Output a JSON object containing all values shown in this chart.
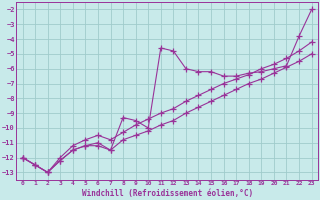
{
  "xlabel": "Windchill (Refroidissement éolien,°C)",
  "x": [
    0,
    1,
    2,
    3,
    4,
    5,
    6,
    7,
    8,
    9,
    10,
    11,
    12,
    13,
    14,
    15,
    16,
    17,
    18,
    19,
    20,
    21,
    22,
    23
  ],
  "line1": [
    -12.0,
    -12.5,
    -13.0,
    -12.2,
    -11.5,
    -11.2,
    -11.0,
    -11.5,
    -9.3,
    -9.5,
    -10.0,
    -4.6,
    -4.8,
    -6.0,
    -6.2,
    -6.2,
    -6.5,
    -6.5,
    -6.3,
    -6.2,
    -6.0,
    -5.8,
    -3.8,
    -2.0
  ],
  "line2": [
    -12.0,
    -12.5,
    -13.0,
    -12.2,
    -11.5,
    -11.2,
    -11.2,
    -11.5,
    -10.8,
    -10.5,
    -10.2,
    -9.8,
    -9.5,
    -9.0,
    -8.6,
    -8.2,
    -7.8,
    -7.4,
    -7.0,
    -6.7,
    -6.3,
    -5.9,
    -5.5,
    -5.0
  ],
  "line3": [
    -12.0,
    -12.5,
    -13.0,
    -12.0,
    -11.2,
    -10.8,
    -10.5,
    -10.8,
    -10.3,
    -9.8,
    -9.4,
    -9.0,
    -8.7,
    -8.2,
    -7.8,
    -7.4,
    -7.0,
    -6.7,
    -6.4,
    -6.0,
    -5.7,
    -5.3,
    -4.8,
    -4.2
  ],
  "color": "#993399",
  "bg_color": "#c8eaea",
  "grid_color": "#a0cccc",
  "ylim": [
    -13.5,
    -1.5
  ],
  "xlim": [
    -0.5,
    23.5
  ],
  "yticks": [
    -13,
    -12,
    -11,
    -10,
    -9,
    -8,
    -7,
    -6,
    -5,
    -4,
    -3,
    -2
  ],
  "xticks": [
    0,
    1,
    2,
    3,
    4,
    5,
    6,
    7,
    8,
    9,
    10,
    11,
    12,
    13,
    14,
    15,
    16,
    17,
    18,
    19,
    20,
    21,
    22,
    23
  ]
}
